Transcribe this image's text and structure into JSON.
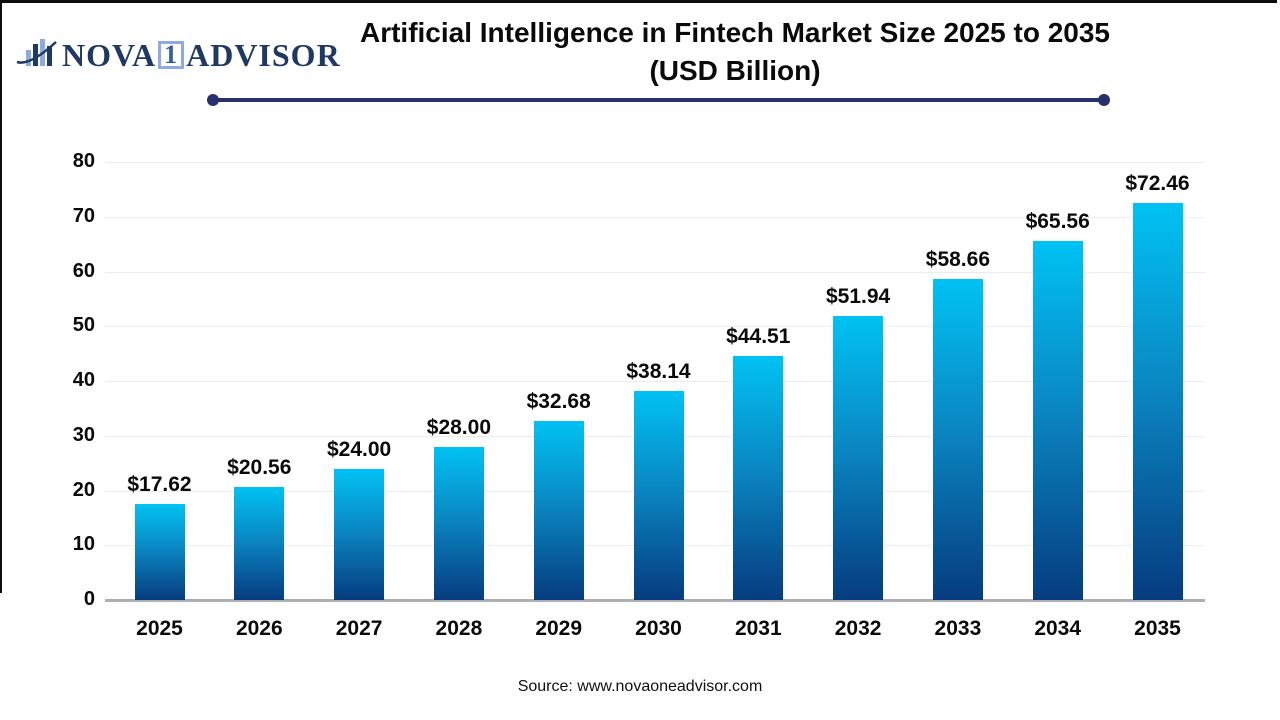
{
  "logo": {
    "icon": "bar-chart-swoosh-icon",
    "nova": "NOVA",
    "one": "1",
    "advisor": "ADVISOR"
  },
  "title": {
    "line1": "Artificial Intelligence in Fintech Market Size 2025 to 2035",
    "line2": "(USD Billion)"
  },
  "source": "Source: www.novaoneadvisor.com",
  "colors": {
    "bar_gradient_top": "#00c2f3",
    "bar_gradient_bottom": "#063c7f",
    "divider_navy": "#26316b",
    "logo_navy": "#1f3864",
    "logo_light_blue": "#8faadc",
    "gridline": "#ebebf0",
    "baseline_gray": "#aeaeae",
    "text_black": "#0a0a0a"
  },
  "chart_data": {
    "type": "bar",
    "title": "Artificial Intelligence in Fintech Market Size 2025 to 2035 (USD Billion)",
    "xlabel": "",
    "ylabel": "",
    "categories": [
      "2025",
      "2026",
      "2027",
      "2028",
      "2029",
      "2030",
      "2031",
      "2032",
      "2033",
      "2034",
      "2035"
    ],
    "values": [
      17.62,
      20.56,
      24.0,
      28.0,
      32.68,
      38.14,
      44.51,
      51.94,
      58.66,
      65.56,
      72.46
    ],
    "value_labels": [
      "$17.62",
      "$20.56",
      "$24.00",
      "$28.00",
      "$32.68",
      "$38.14",
      "$44.51",
      "$51.94",
      "$58.66",
      "$65.56",
      "$72.46"
    ],
    "ylim": [
      0,
      80
    ],
    "yticks": [
      0,
      10,
      20,
      30,
      40,
      50,
      60,
      70,
      80
    ],
    "grid": true,
    "legend": false
  }
}
